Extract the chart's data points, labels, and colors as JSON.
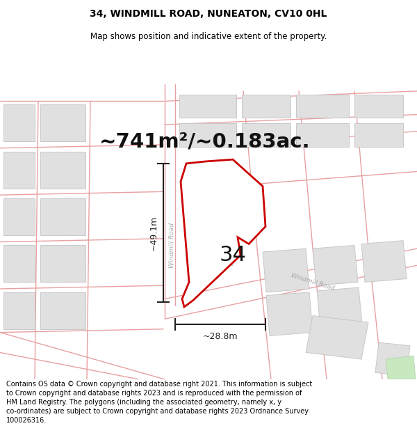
{
  "title_line1": "34, WINDMILL ROAD, NUNEATON, CV10 0HL",
  "title_line2": "Map shows position and indicative extent of the property.",
  "area_text": "~741m²/~0.183ac.",
  "label_34": "34",
  "dim_vertical": "~49.1m",
  "dim_horizontal": "~28.8m",
  "road_label_vertical": "Windmill Road",
  "road_label_diagonal": "Windmill Road",
  "footer_text": "Contains OS data © Crown copyright and database right 2021. This information is subject\nto Crown copyright and database rights 2023 and is reproduced with the permission of\nHM Land Registry. The polygons (including the associated geometry, namely x, y\nco-ordinates) are subject to Crown copyright and database rights 2023 Ordnance Survey\n100026316.",
  "bg_color": "#ffffff",
  "map_bg": "#f0f0f0",
  "road_line_color": "#e8a0a0",
  "building_color": "#e0e0e0",
  "building_edge": "#c8c8c8",
  "property_fill": "#ffffff",
  "property_edge": "#cc0000",
  "dim_color": "#222222",
  "text_color": "#000000",
  "road_text_color": "#aaaaaa",
  "title_fontsize": 10,
  "subtitle_fontsize": 8.5,
  "area_fontsize": 21,
  "label34_fontsize": 22,
  "dim_fontsize": 9,
  "footer_fontsize": 7.0
}
